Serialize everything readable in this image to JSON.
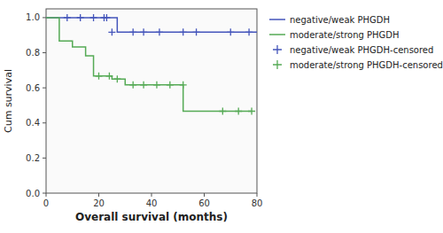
{
  "chart_data": {
    "type": "line",
    "xlabel": "Overall survival (months)",
    "ylabel": "Cum survival",
    "xlim": [
      0,
      80
    ],
    "ylim": [
      0.0,
      1.05
    ],
    "xticks": [
      0,
      20,
      40,
      60,
      80
    ],
    "yticks": [
      {
        "value": 0.0,
        "label": "0.0"
      },
      0.2,
      0.4,
      0.6,
      0.8,
      {
        "value": 1.0,
        "label": "1.0"
      }
    ],
    "grid": false,
    "legend": "upper right",
    "series": [
      {
        "name": "negative/weak PHGDH",
        "type": "step",
        "color": "#4455bb",
        "x": [
          0,
          27,
          27,
          80
        ],
        "values": [
          1.0,
          1.0,
          0.917,
          0.917
        ]
      },
      {
        "name": "moderate/strong PHGDH",
        "type": "step",
        "color": "#55aa55",
        "x": [
          0,
          5,
          5,
          10,
          10,
          15,
          15,
          18,
          18,
          22,
          22,
          25,
          25,
          30,
          30,
          33,
          33,
          38,
          38,
          42,
          42,
          47,
          47,
          52,
          52,
          65,
          65,
          78
        ],
        "values": [
          1.0,
          1.0,
          0.867,
          0.867,
          0.833,
          0.833,
          0.783,
          0.783,
          0.667,
          0.667,
          0.667,
          0.667,
          0.65,
          0.65,
          0.617,
          0.617,
          0.617,
          0.617,
          0.617,
          0.617,
          0.617,
          0.617,
          0.617,
          0.617,
          0.467,
          0.467,
          0.467,
          0.467
        ]
      },
      {
        "name": "negative/weak PHGDH-censored",
        "type": "scatter",
        "marker": "+",
        "color": "#4455bb",
        "x": [
          8,
          13,
          18,
          22,
          23,
          25,
          33,
          37,
          43,
          52,
          57,
          70,
          77
        ],
        "values": [
          1.0,
          1.0,
          1.0,
          1.0,
          1.0,
          0.917,
          0.917,
          0.917,
          0.917,
          0.917,
          0.917,
          0.917,
          0.917
        ]
      },
      {
        "name": "moderate/strong PHGDH-censored",
        "type": "scatter",
        "marker": "+",
        "color": "#55aa55",
        "x": [
          20,
          24,
          27,
          33,
          37,
          42,
          47,
          52,
          67,
          73,
          78
        ],
        "values": [
          0.667,
          0.667,
          0.65,
          0.617,
          0.617,
          0.617,
          0.617,
          0.617,
          0.467,
          0.467,
          0.467
        ]
      }
    ]
  }
}
